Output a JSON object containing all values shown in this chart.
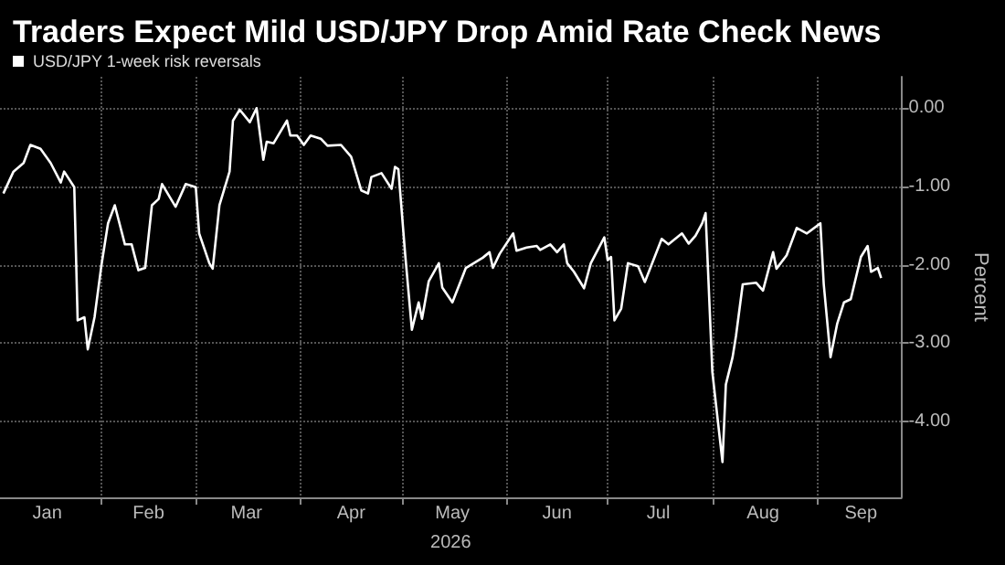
{
  "chart_data": {
    "type": "line",
    "title": "Traders Expect Mild USD/JPY Drop Amid Rate Check News",
    "xlabel": "2026",
    "ylabel": "Percent",
    "x": [
      "2026-01-03",
      "2026-01-06",
      "2026-01-09",
      "2026-01-11",
      "2026-01-14",
      "2026-01-17",
      "2026-01-20",
      "2026-01-21",
      "2026-01-24",
      "2026-01-25",
      "2026-01-27",
      "2026-01-28",
      "2026-01-30",
      "2026-02-01",
      "2026-02-03",
      "2026-02-05",
      "2026-02-08",
      "2026-02-10",
      "2026-02-12",
      "2026-02-14",
      "2026-02-16",
      "2026-02-18",
      "2026-02-19",
      "2026-02-23",
      "2026-02-26",
      "2026-03-01",
      "2026-03-02",
      "2026-03-05",
      "2026-03-06",
      "2026-03-08",
      "2026-03-11",
      "2026-03-12",
      "2026-03-14",
      "2026-03-17",
      "2026-03-19",
      "2026-03-21",
      "2026-03-22",
      "2026-03-24",
      "2026-03-28",
      "2026-03-29",
      "2026-03-31",
      "2026-04-02",
      "2026-04-04",
      "2026-04-07",
      "2026-04-09",
      "2026-04-13",
      "2026-04-16",
      "2026-04-19",
      "2026-04-21",
      "2026-04-22",
      "2026-04-25",
      "2026-04-28",
      "2026-04-29",
      "2026-04-30",
      "2026-05-02",
      "2026-05-04",
      "2026-05-06",
      "2026-05-07",
      "2026-05-09",
      "2026-05-12",
      "2026-05-13",
      "2026-05-16",
      "2026-05-20",
      "2026-05-25",
      "2026-05-27",
      "2026-05-28",
      "2026-05-30",
      "2026-06-03",
      "2026-06-04",
      "2026-06-07",
      "2026-06-10",
      "2026-06-11",
      "2026-06-14",
      "2026-06-16",
      "2026-06-18",
      "2026-06-19",
      "2026-06-21",
      "2026-06-24",
      "2026-06-26",
      "2026-06-30",
      "2026-07-01",
      "2026-07-02",
      "2026-07-03",
      "2026-07-05",
      "2026-07-07",
      "2026-07-10",
      "2026-07-12",
      "2026-07-17",
      "2026-07-19",
      "2026-07-23",
      "2026-07-25",
      "2026-07-27",
      "2026-07-29",
      "2026-07-30",
      "2026-08-01",
      "2026-08-04",
      "2026-08-05",
      "2026-08-07",
      "2026-08-08",
      "2026-08-10",
      "2026-08-14",
      "2026-08-16",
      "2026-08-19",
      "2026-08-20",
      "2026-08-23",
      "2026-08-26",
      "2026-08-29",
      "2026-09-02",
      "2026-09-03",
      "2026-09-05",
      "2026-09-07",
      "2026-09-09",
      "2026-09-11",
      "2026-09-14",
      "2026-09-16",
      "2026-09-17",
      "2026-09-19",
      "2026-09-20"
    ],
    "series": [
      {
        "name": "USD/JPY 1-week risk reversals",
        "color": "#ffffff",
        "values": [
          -1.09,
          -0.81,
          -0.7,
          -0.47,
          -0.52,
          -0.7,
          -0.95,
          -0.81,
          -1.01,
          -2.71,
          -2.67,
          -3.08,
          -2.67,
          -2.02,
          -1.47,
          -1.24,
          -1.74,
          -1.74,
          -2.07,
          -2.04,
          -1.24,
          -1.16,
          -0.97,
          -1.26,
          -0.97,
          -1.01,
          -1.6,
          -1.98,
          -2.05,
          -1.24,
          -0.81,
          -0.16,
          -0.02,
          -0.18,
          0.0,
          -0.66,
          -0.43,
          -0.45,
          -0.16,
          -0.35,
          -0.35,
          -0.47,
          -0.35,
          -0.39,
          -0.48,
          -0.47,
          -0.62,
          -1.05,
          -1.09,
          -0.88,
          -0.83,
          -1.03,
          -0.75,
          -0.78,
          -1.86,
          -2.83,
          -2.48,
          -2.69,
          -2.21,
          -1.98,
          -2.29,
          -2.48,
          -2.04,
          -1.91,
          -1.84,
          -2.04,
          -1.86,
          -1.6,
          -1.82,
          -1.78,
          -1.76,
          -1.81,
          -1.74,
          -1.84,
          -1.74,
          -1.98,
          -2.09,
          -2.3,
          -1.98,
          -1.65,
          -1.94,
          -1.9,
          -2.71,
          -2.56,
          -1.98,
          -2.02,
          -2.22,
          -1.67,
          -1.74,
          -1.6,
          -1.73,
          -1.63,
          -1.47,
          -1.34,
          -3.37,
          -4.52,
          -3.53,
          -3.18,
          -2.91,
          -2.25,
          -2.23,
          -2.33,
          -1.84,
          -2.05,
          -1.88,
          -1.53,
          -1.6,
          -1.47,
          -2.25,
          -3.18,
          -2.75,
          -2.48,
          -2.44,
          -1.9,
          -1.76,
          -2.09,
          -2.04,
          -2.17
        ]
      }
    ],
    "xlim": [
      "2026-01-02",
      "2026-09-26"
    ],
    "xticks": [
      {
        "value": "2026-01-16",
        "label": "Jan"
      },
      {
        "value": "2026-02-01",
        "label": null
      },
      {
        "value": "2026-02-15",
        "label": "Feb"
      },
      {
        "value": "2026-03-01",
        "label": null
      },
      {
        "value": "2026-03-16",
        "label": "Mar"
      },
      {
        "value": "2026-04-01",
        "label": null
      },
      {
        "value": "2026-04-16",
        "label": "Apr"
      },
      {
        "value": "2026-05-01",
        "label": null
      },
      {
        "value": "2026-05-16",
        "label": "May"
      },
      {
        "value": "2026-06-01",
        "label": null
      },
      {
        "value": "2026-06-16",
        "label": "Jun"
      },
      {
        "value": "2026-07-01",
        "label": null
      },
      {
        "value": "2026-07-16",
        "label": "Jul"
      },
      {
        "value": "2026-08-01",
        "label": null
      },
      {
        "value": "2026-08-16",
        "label": "Aug"
      },
      {
        "value": "2026-09-01",
        "label": null
      },
      {
        "value": "2026-09-14",
        "label": "Sep"
      }
    ],
    "ylim": [
      -4.97,
      0.4
    ],
    "yticks": [
      {
        "value": -4,
        "label": "-4.00"
      },
      {
        "value": -3,
        "label": "-3.00"
      },
      {
        "value": -2,
        "label": "-2.00"
      },
      {
        "value": -1,
        "label": "-1.00"
      },
      {
        "value": 0,
        "label": "0.00"
      }
    ],
    "grid": true,
    "legend": "top left",
    "marker": "none",
    "line_style": "solid"
  }
}
